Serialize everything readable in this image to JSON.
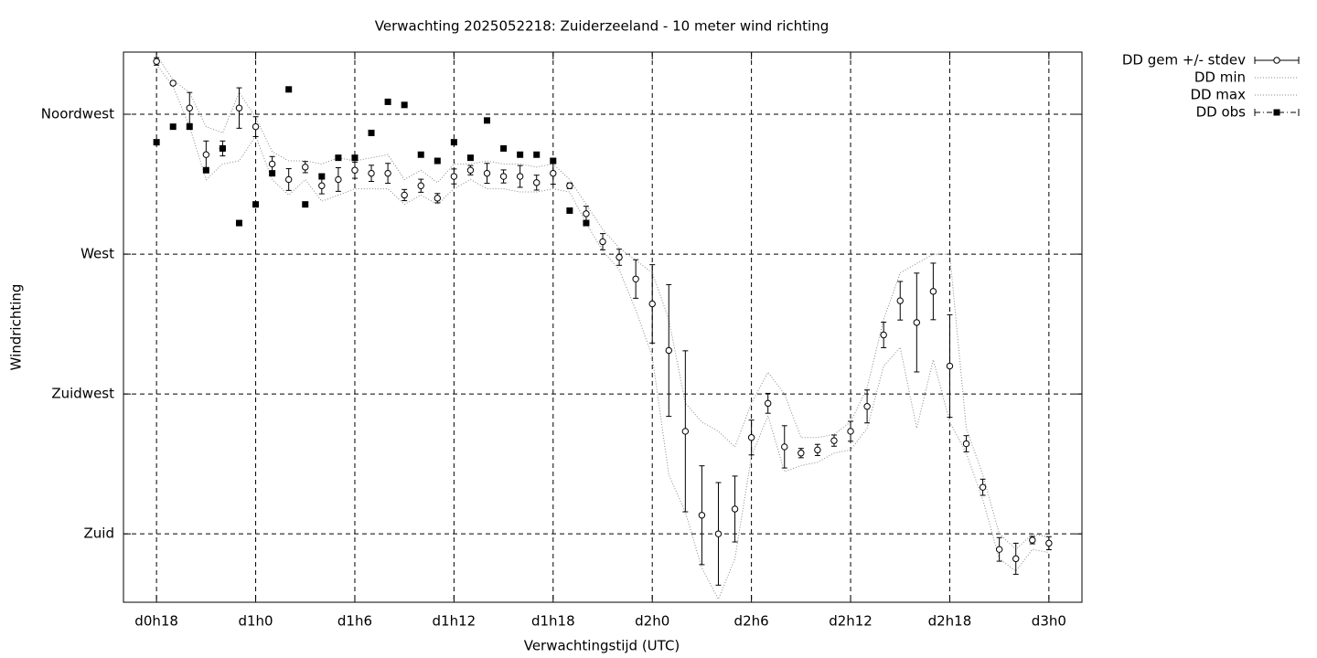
{
  "chart_data": {
    "type": "errorbar",
    "title": "Verwachting 2025052218: Zuiderzeeland - 10 meter wind richting",
    "xlabel": "Verwachtingstijd (UTC)",
    "ylabel": "Windrichting",
    "x": [
      18,
      19,
      20,
      21,
      22,
      23,
      24,
      25,
      26,
      27,
      28,
      29,
      30,
      31,
      32,
      33,
      34,
      35,
      36,
      37,
      38,
      39,
      40,
      41,
      42,
      43,
      44,
      45,
      46,
      47,
      48,
      49,
      50,
      51,
      52,
      53,
      54,
      55,
      56,
      57,
      58,
      59,
      60,
      61,
      62,
      63,
      64,
      65,
      66,
      67,
      68,
      69,
      70,
      71,
      72
    ],
    "series": [
      {
        "name": "DD gem +/- stdev",
        "color": "#000000",
        "values": [
          332,
          325,
          317,
          302,
          304,
          317,
          311,
          299,
          294,
          298,
          292,
          294,
          297,
          296,
          296,
          289,
          292,
          288,
          295,
          297,
          296,
          295,
          295,
          293,
          296,
          292,
          283,
          274,
          269,
          262,
          254,
          239,
          213,
          186,
          180,
          188,
          211,
          222,
          208,
          206,
          207,
          210,
          213,
          221,
          244,
          255,
          248,
          258,
          234,
          209,
          195,
          175,
          172,
          178,
          177
        ],
        "errors": [
          1.2,
          0.6,
          5,
          4.4,
          2.4,
          6.5,
          3.2,
          2.4,
          3.5,
          1.8,
          2.6,
          3.8,
          2.6,
          2.6,
          3.2,
          1.8,
          2.1,
          1.5,
          2.4,
          1.5,
          3.2,
          2.1,
          3.5,
          2.4,
          3.5,
          0.9,
          2.4,
          2.6,
          2.6,
          6.2,
          12.6,
          21.2,
          25.9,
          15.9,
          16.5,
          10.6,
          5.6,
          3.2,
          6.8,
          1.5,
          1.8,
          1.8,
          3.2,
          5.3,
          4.1,
          6.2,
          15.9,
          9.1,
          16.5,
          2.6,
          2.6,
          3.8,
          5,
          1.2,
          2.1
        ]
      },
      {
        "name": "DD min",
        "color": "#888888",
        "values": [
          331,
          324,
          311,
          294,
          299,
          300,
          308,
          294,
          289,
          294,
          287,
          289,
          291,
          291,
          291,
          286,
          289,
          286,
          291,
          294,
          291,
          291,
          290,
          290,
          291,
          290,
          280,
          271,
          265,
          252,
          237,
          199,
          187,
          169,
          159,
          172,
          205,
          218,
          200,
          202,
          203,
          206,
          207,
          214,
          234,
          240,
          214,
          236,
          216,
          206,
          191,
          172,
          168,
          175,
          174
        ]
      },
      {
        "name": "DD max",
        "color": "#888888",
        "values": [
          334,
          326,
          322,
          311,
          309,
          322,
          314,
          303,
          300,
          300,
          299,
          301,
          300,
          301,
          302,
          294,
          297,
          293,
          299,
          299,
          300,
          299,
          299,
          298,
          299,
          294,
          286,
          278,
          272,
          268,
          264,
          249,
          222,
          216,
          213,
          208,
          222,
          232,
          225,
          211,
          211,
          212,
          216,
          227,
          249,
          264,
          267,
          270,
          270,
          214,
          199,
          180,
          175,
          180,
          179
        ]
      },
      {
        "name": "DD obs",
        "color": "#000000",
        "values": [
          306,
          311,
          311,
          297,
          304,
          280,
          286,
          296,
          323,
          286,
          295,
          301,
          301,
          309,
          319,
          318,
          302,
          300,
          306,
          301,
          313,
          304,
          302,
          302,
          300,
          284,
          280,
          null,
          null,
          null,
          null,
          null,
          null,
          null,
          null,
          null,
          null,
          null,
          null,
          null,
          null,
          null,
          null,
          null,
          null,
          null,
          null,
          null,
          null,
          null,
          null,
          null,
          null,
          null,
          null
        ]
      }
    ],
    "xlim": [
      16,
      74
    ],
    "xticks": [
      {
        "value": 18,
        "label": "d0h18"
      },
      {
        "value": 24,
        "label": "d1h0"
      },
      {
        "value": 30,
        "label": "d1h6"
      },
      {
        "value": 36,
        "label": "d1h12"
      },
      {
        "value": 42,
        "label": "d1h18"
      },
      {
        "value": 48,
        "label": "d2h0"
      },
      {
        "value": 54,
        "label": "d2h6"
      },
      {
        "value": 60,
        "label": "d2h12"
      },
      {
        "value": 66,
        "label": "d2h18"
      },
      {
        "value": 72,
        "label": "d3h0"
      }
    ],
    "ylim": [
      158,
      335
    ],
    "yticks": [
      {
        "value": 180,
        "label": "Zuid"
      },
      {
        "value": 225,
        "label": "Zuidwest"
      },
      {
        "value": 270,
        "label": "West"
      },
      {
        "value": 315,
        "label": "Noordwest"
      }
    ],
    "grid": true,
    "legend": "outside-right"
  }
}
